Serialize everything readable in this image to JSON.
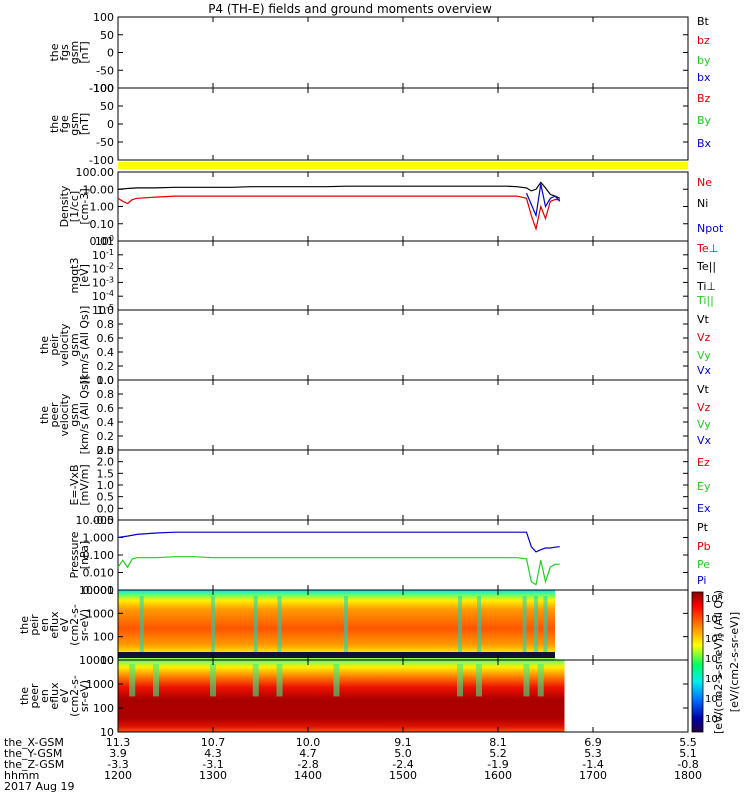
{
  "title": "P4 (TH-E) fields and ground moments overview",
  "time_axis": {
    "xlim": [
      1200,
      1800
    ],
    "ticks": [
      1200,
      1300,
      1400,
      1500,
      1600,
      1700,
      1800
    ],
    "rows": [
      {
        "label": "the_X-GSM",
        "values": [
          "11.3",
          "10.7",
          "10.0",
          "9.1",
          "8.1",
          "6.9",
          "5.5"
        ]
      },
      {
        "label": "the_Y-GSM",
        "values": [
          "3.9",
          "4.3",
          "4.7",
          "5.0",
          "5.2",
          "5.3",
          "5.1"
        ]
      },
      {
        "label": "the_Z-GSM",
        "values": [
          "-3.3",
          "-3.1",
          "-2.8",
          "-2.4",
          "-1.9",
          "-1.4",
          "-0.8"
        ]
      },
      {
        "label": "hhmm",
        "values": [
          "1200",
          "1300",
          "1400",
          "1500",
          "1600",
          "1700",
          "1800"
        ]
      }
    ],
    "date": "2017 Aug 19"
  },
  "colorbar": {
    "ticks": [
      "10^8",
      "10^7",
      "10^6",
      "10^5",
      "10^4",
      "10^3",
      "10^2"
    ],
    "label": "[eV/(cm2-s-sr-eV)] (All Qs)",
    "label_back": "[eV/(cm2-s-sr-eV)]"
  },
  "chart_data": [
    {
      "id": "fgs",
      "type": "line",
      "ylabel": [
        "the",
        "fgs",
        "gsm",
        "[nT]"
      ],
      "ylim": [
        -100,
        100
      ],
      "ticks": [
        "100",
        "50",
        "0",
        "-50",
        "-100"
      ],
      "legend": [
        {
          "label": "Bt",
          "color": "#000000"
        },
        {
          "label": "bz",
          "color": "#dd0000"
        },
        {
          "label": "by",
          "color": "#22cc22"
        },
        {
          "label": "bx",
          "color": "#0000cc"
        }
      ],
      "series": []
    },
    {
      "id": "fge",
      "type": "line",
      "ylabel": [
        "the",
        "fge",
        "gsm",
        "[nT]"
      ],
      "ylim": [
        -130,
        130
      ],
      "ticks": [
        "100",
        "50",
        "0",
        "-50",
        "-100"
      ],
      "overlay_tick": "-100",
      "legend": [
        {
          "label": "Bz",
          "color": "#dd0000"
        },
        {
          "label": "By",
          "color": "#22cc22"
        },
        {
          "label": "Bx",
          "color": "#0000cc"
        }
      ],
      "series": []
    },
    {
      "id": "density",
      "type": "line",
      "scale": "log",
      "ylabel": [
        "Density",
        "[1/cc]",
        "[cm-3]"
      ],
      "ylim": [
        0.01,
        100
      ],
      "ticks": [
        "100.00",
        "10.00",
        "1.00",
        "0.10",
        "0.01"
      ],
      "legend": [
        {
          "label": "Ne",
          "color": "#dd0000"
        },
        {
          "label": "Ni",
          "color": "#000000"
        },
        {
          "label": "Npot",
          "color": "#0000cc"
        }
      ],
      "series": [
        {
          "name": "Ni",
          "color": "#000000",
          "x": [
            1200,
            1210,
            1220,
            1240,
            1260,
            1280,
            1300,
            1320,
            1340,
            1360,
            1380,
            1400,
            1420,
            1440,
            1460,
            1480,
            1500,
            1510,
            1520,
            1540,
            1560,
            1580,
            1600,
            1610,
            1620,
            1630,
            1635,
            1640,
            1645,
            1650,
            1655,
            1660,
            1665
          ],
          "y": [
            10,
            11,
            12,
            12,
            13,
            13,
            13,
            13,
            14,
            14,
            14,
            14,
            14,
            15,
            15,
            15,
            15,
            15,
            15,
            15,
            15,
            15,
            15,
            15,
            14,
            12,
            8,
            10,
            25,
            12,
            5,
            4,
            3
          ]
        },
        {
          "name": "Ne",
          "color": "#dd0000",
          "x": [
            1200,
            1205,
            1210,
            1215,
            1220,
            1240,
            1260,
            1280,
            1300,
            1320,
            1340,
            1360,
            1380,
            1400,
            1420,
            1440,
            1460,
            1480,
            1500,
            1520,
            1540,
            1560,
            1580,
            1600,
            1620,
            1630,
            1635,
            1640,
            1645,
            1650,
            1655,
            1660,
            1665
          ],
          "y": [
            3,
            2,
            1.5,
            2.5,
            3,
            3.5,
            4,
            4,
            4,
            4,
            4,
            4,
            4,
            4,
            4,
            4,
            4,
            4,
            4,
            4,
            4,
            4,
            4,
            4,
            4,
            3,
            0.3,
            0.05,
            1,
            0.2,
            2,
            2.5,
            2.5
          ]
        },
        {
          "name": "Npot",
          "color": "#0000cc",
          "x": [
            1630,
            1640,
            1645,
            1650,
            1655,
            1660,
            1665
          ],
          "y": [
            6,
            0.3,
            20,
            1,
            3,
            4,
            2
          ]
        }
      ]
    },
    {
      "id": "mgqt3",
      "type": "line",
      "scale": "log",
      "ylabel": [
        "mgqt3",
        "[eV]"
      ],
      "ylim": [
        -5,
        0
      ],
      "ticks": [
        "10^0",
        "10^-1",
        "10^-2",
        "10^-3",
        "10^-4",
        "10^-5"
      ],
      "legend": [
        {
          "label": "Te⊥",
          "color": "#dd0000"
        },
        {
          "label": "Te||",
          "color": "#000000"
        },
        {
          "label": "Ti⊥",
          "color": "#000000"
        },
        {
          "label": "Ti||",
          "color": "#22cc22"
        }
      ],
      "series": []
    },
    {
      "id": "peir_velocity",
      "type": "line",
      "ylabel": [
        "the",
        "peir",
        "velocity",
        "gsm",
        "[km/s (All Qs)]"
      ],
      "ylim": [
        0,
        1
      ],
      "ticks": [
        "1.0",
        "0.8",
        "0.6",
        "0.4",
        "0.2",
        "0.0"
      ],
      "legend": [
        {
          "label": "Vt",
          "color": "#000000"
        },
        {
          "label": "Vz",
          "color": "#dd0000"
        },
        {
          "label": "Vy",
          "color": "#22cc22"
        },
        {
          "label": "Vx",
          "color": "#0000cc"
        }
      ],
      "series": []
    },
    {
      "id": "peer_velocity",
      "type": "line",
      "ylabel": [
        "the",
        "peer",
        "velocity",
        "gsm",
        "[km/s (All Qs)]"
      ],
      "ylim": [
        0,
        1
      ],
      "ticks": [
        "1.0",
        "0.8",
        "0.6",
        "0.4",
        "0.2",
        "0.0"
      ],
      "legend": [
        {
          "label": "Vt",
          "color": "#000000"
        },
        {
          "label": "Vz",
          "color": "#dd0000"
        },
        {
          "label": "Vy",
          "color": "#22cc22"
        },
        {
          "label": "Vx",
          "color": "#0000cc"
        }
      ],
      "series": []
    },
    {
      "id": "efield",
      "type": "line",
      "ylabel": [
        "E=-VxB",
        "[mV/m]"
      ],
      "ylim": [
        0,
        2.5
      ],
      "ticks": [
        "2.5",
        "2.0",
        "1.5",
        "1.0",
        "0.5",
        "0.0",
        "-0.5"
      ],
      "legend": [
        {
          "label": "Ez",
          "color": "#dd0000"
        },
        {
          "label": "Ey",
          "color": "#22cc22"
        },
        {
          "label": "Ex",
          "color": "#0000cc"
        }
      ],
      "series": []
    },
    {
      "id": "pressure",
      "type": "line",
      "scale": "log",
      "ylabel": [
        "Pressure",
        "[nPa]"
      ],
      "ylim": [
        0.001,
        10
      ],
      "ticks": [
        "10.000",
        "1.000",
        "0.100",
        "0.010",
        "0.001"
      ],
      "legend": [
        {
          "label": "Pt",
          "color": "#000000"
        },
        {
          "label": "Pb",
          "color": "#dd0000"
        },
        {
          "label": "Pe",
          "color": "#22cc22"
        },
        {
          "label": "Pi",
          "color": "#0000cc"
        }
      ],
      "series": [
        {
          "name": "Pi",
          "color": "#0000cc",
          "x": [
            1200,
            1210,
            1220,
            1240,
            1260,
            1280,
            1300,
            1320,
            1340,
            1360,
            1380,
            1400,
            1420,
            1440,
            1460,
            1480,
            1500,
            1520,
            1540,
            1560,
            1580,
            1600,
            1620,
            1630,
            1635,
            1640,
            1645,
            1650,
            1655,
            1660,
            1665
          ],
          "y": [
            1.0,
            1.2,
            1.5,
            1.8,
            2,
            2,
            2,
            2,
            2,
            2,
            2,
            2,
            2,
            2,
            2,
            2,
            2,
            2,
            2,
            2,
            2,
            2,
            2,
            2,
            0.3,
            0.15,
            0.2,
            0.25,
            0.25,
            0.28,
            0.3
          ]
        },
        {
          "name": "Pe",
          "color": "#22cc22",
          "x": [
            1200,
            1205,
            1210,
            1215,
            1220,
            1240,
            1260,
            1280,
            1300,
            1320,
            1340,
            1360,
            1380,
            1400,
            1420,
            1440,
            1460,
            1480,
            1500,
            1520,
            1540,
            1560,
            1580,
            1600,
            1620,
            1630,
            1635,
            1640,
            1645,
            1650,
            1655,
            1660,
            1665
          ],
          "y": [
            0.02,
            0.05,
            0.02,
            0.06,
            0.07,
            0.07,
            0.08,
            0.08,
            0.07,
            0.07,
            0.07,
            0.07,
            0.07,
            0.07,
            0.07,
            0.07,
            0.07,
            0.07,
            0.07,
            0.07,
            0.07,
            0.07,
            0.07,
            0.07,
            0.07,
            0.06,
            0.003,
            0.002,
            0.05,
            0.003,
            0.02,
            0.03,
            0.03
          ]
        }
      ]
    },
    {
      "id": "peir_eflux",
      "type": "heatmap",
      "scale": "log",
      "ylabel": [
        "the",
        "peir",
        "en",
        "eflux",
        "eV",
        "(cm2-s-",
        "sr-eV)"
      ],
      "ylim": [
        5,
        30000
      ],
      "ticks": [
        "10000",
        "1000",
        "100",
        "10"
      ],
      "data_end": 1660,
      "dark_line": null
    },
    {
      "id": "peer_eflux",
      "type": "heatmap",
      "scale": "log",
      "ylabel": [
        "the",
        "peer",
        "en",
        "eflux",
        "eV",
        "(cm2-s-",
        "sr-eV)"
      ],
      "ylim": [
        5,
        30000
      ],
      "ticks": [
        "10000",
        "1000",
        "100",
        "10"
      ],
      "data_end": 1670
    }
  ],
  "colors": {
    "gap_band": "#ffff00"
  }
}
